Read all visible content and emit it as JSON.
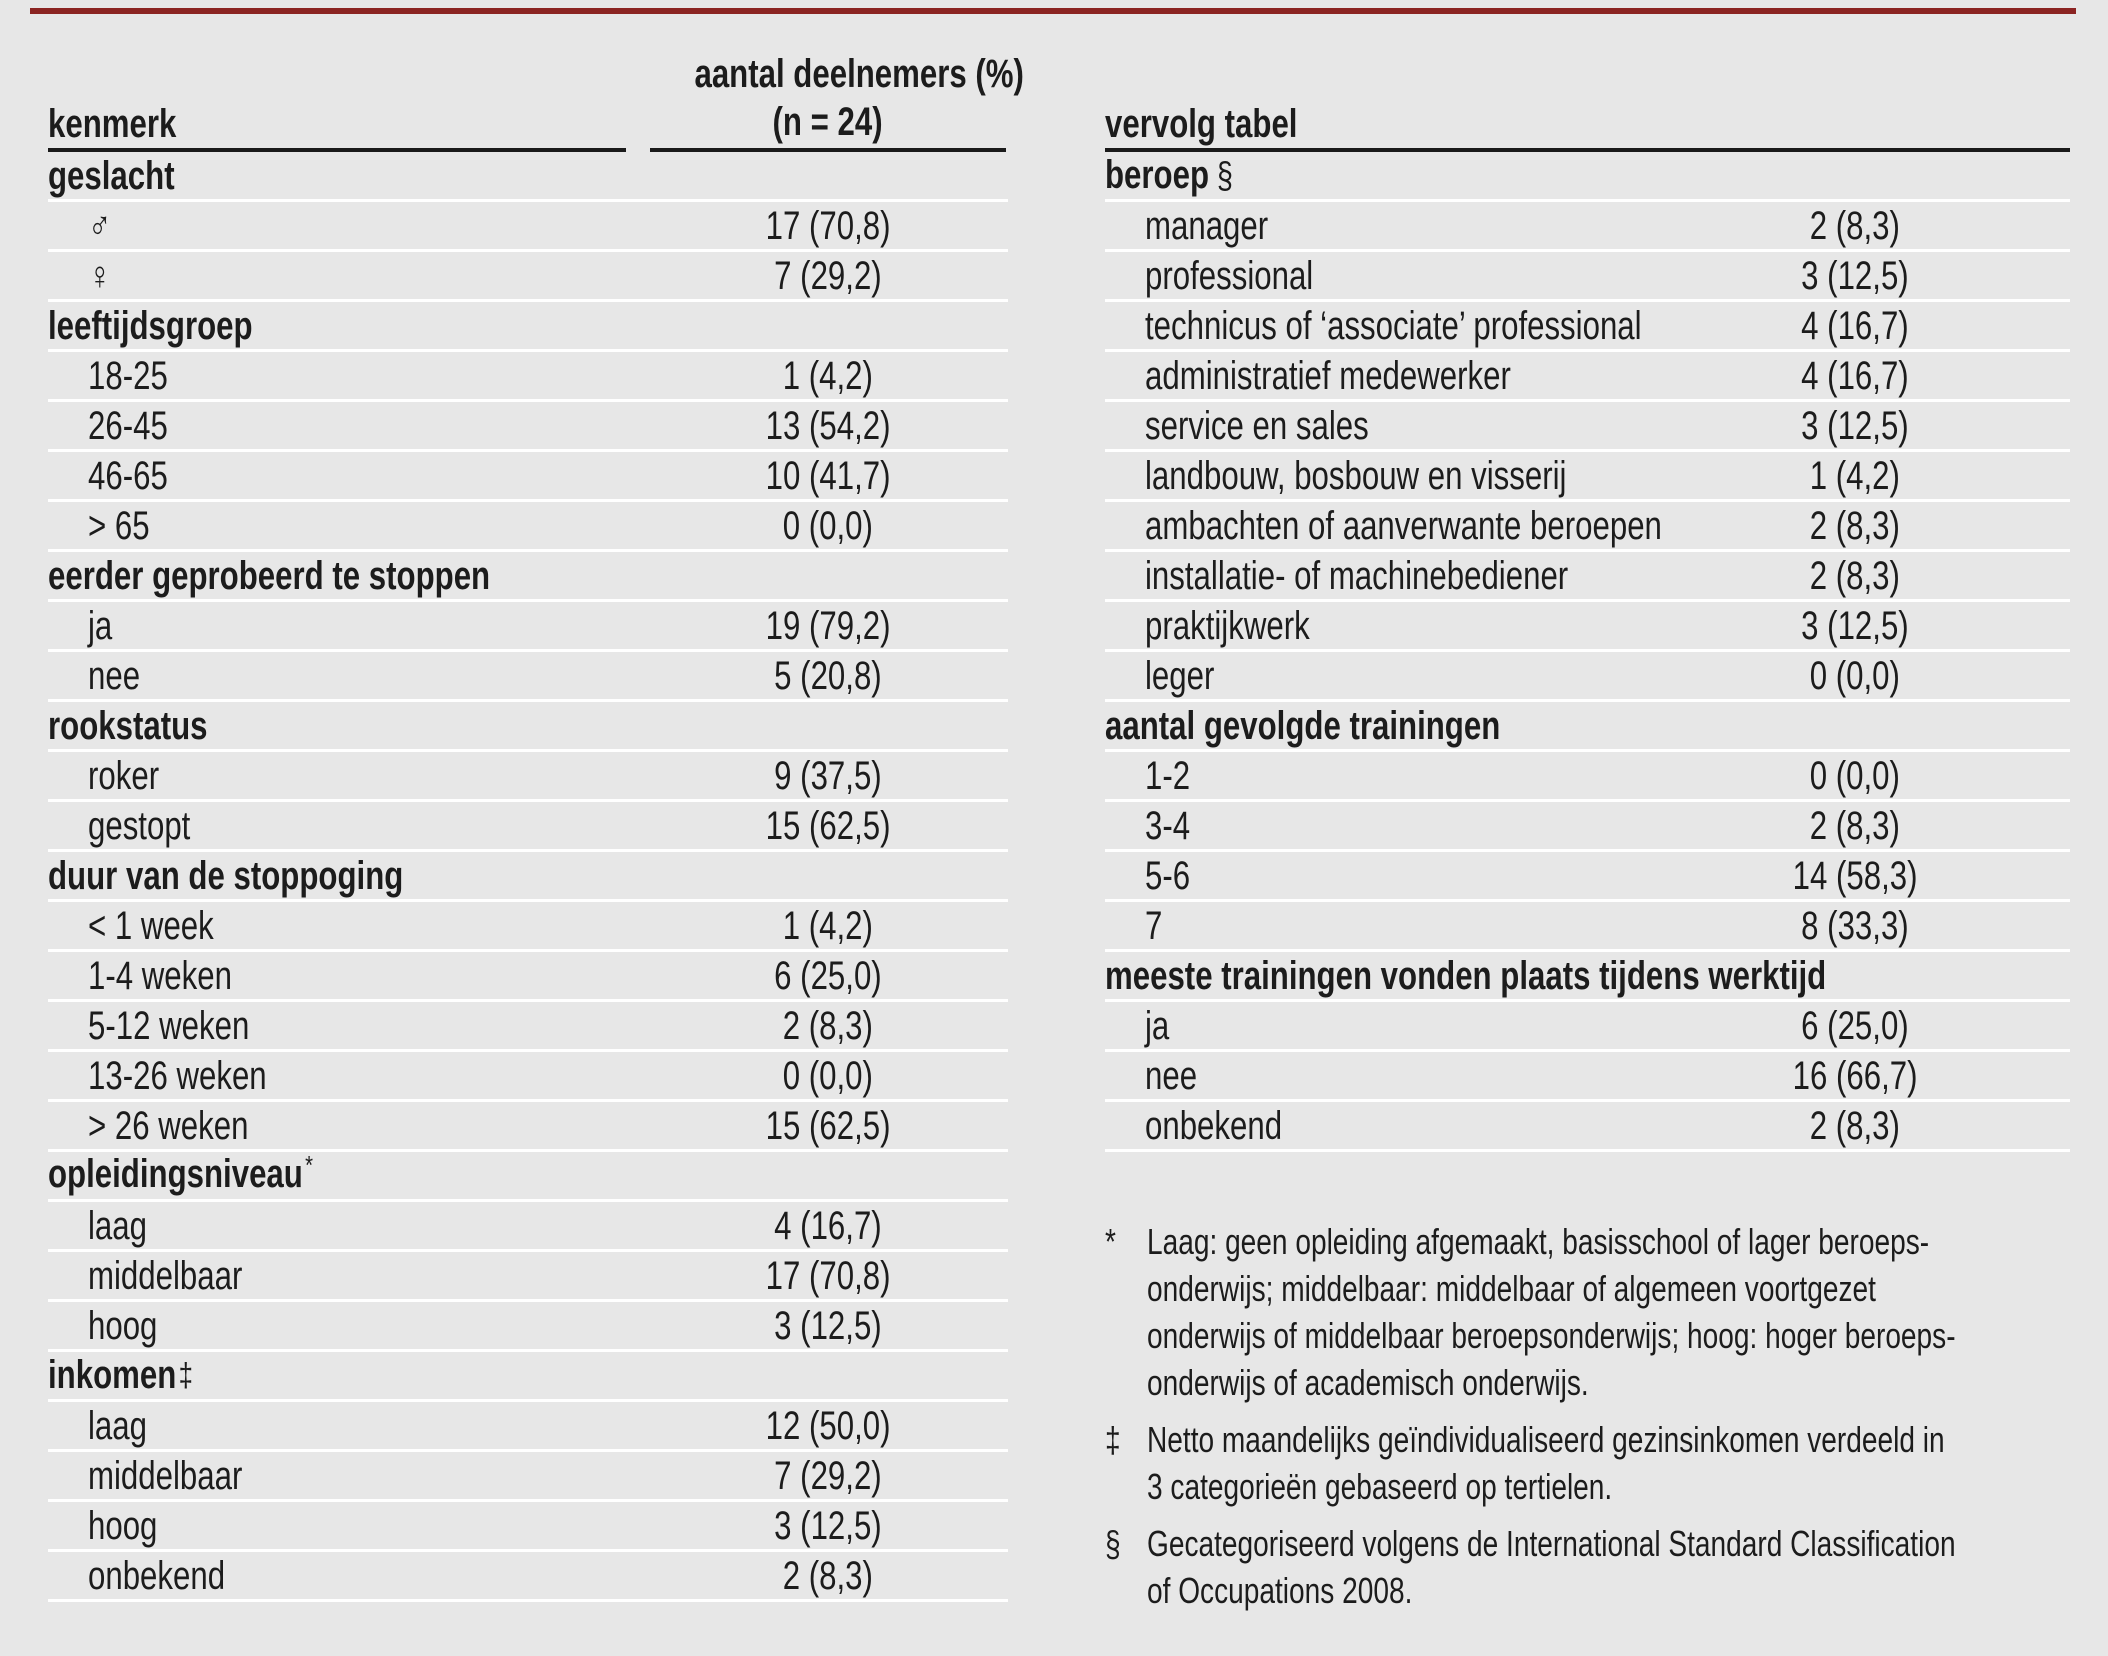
{
  "colors": {
    "background": "#e7e7e7",
    "text": "#1c1c1c",
    "rule": "#1a1a1a",
    "separator": "#ffffff",
    "accent_bar": "#8b2422"
  },
  "table": {
    "left": {
      "header_label": "kenmerk",
      "header_value_line1": "aantal deelnemers (%)",
      "header_value_line2": "(n = 24)",
      "sections": [
        {
          "title": "geslacht",
          "marker": "",
          "rows": [
            {
              "label": "♂",
              "value": "17 (70,8)"
            },
            {
              "label": "♀",
              "value": "7 (29,2)"
            }
          ]
        },
        {
          "title": "leeftijdsgroep",
          "marker": "",
          "rows": [
            {
              "label": "18-25",
              "value": "1 (4,2)"
            },
            {
              "label": "26-45",
              "value": "13 (54,2)"
            },
            {
              "label": "46-65",
              "value": "10 (41,7)"
            },
            {
              "label": "> 65",
              "value": "0 (0,0)"
            }
          ]
        },
        {
          "title": "eerder geprobeerd te stoppen",
          "marker": "",
          "rows": [
            {
              "label": "ja",
              "value": "19 (79,2)"
            },
            {
              "label": "nee",
              "value": "5 (20,8)"
            }
          ]
        },
        {
          "title": "rookstatus",
          "marker": "",
          "rows": [
            {
              "label": "roker",
              "value": "9 (37,5)"
            },
            {
              "label": "gestopt",
              "value": "15 (62,5)"
            }
          ]
        },
        {
          "title": "duur van de stoppoging",
          "marker": "",
          "rows": [
            {
              "label": "< 1 week",
              "value": "1 (4,2)"
            },
            {
              "label": "1-4 weken",
              "value": "6 (25,0)"
            },
            {
              "label": "5-12 weken",
              "value": "2 (8,3)"
            },
            {
              "label": "13-26 weken",
              "value": "0 (0,0)"
            },
            {
              "label": "> 26 weken",
              "value": "15 (62,5)"
            }
          ]
        },
        {
          "title": "opleidingsniveau",
          "marker": "*",
          "rows": [
            {
              "label": "laag",
              "value": "4 (16,7)"
            },
            {
              "label": "middelbaar",
              "value": "17 (70,8)"
            },
            {
              "label": "hoog",
              "value": "3 (12,5)"
            }
          ]
        },
        {
          "title": "inkomen",
          "marker": "‡",
          "rows": [
            {
              "label": "laag",
              "value": "12 (50,0)"
            },
            {
              "label": "middelbaar",
              "value": "7 (29,2)"
            },
            {
              "label": "hoog",
              "value": "3 (12,5)"
            },
            {
              "label": "onbekend",
              "value": "2 (8,3)"
            }
          ]
        }
      ]
    },
    "right": {
      "header_label": "vervolg tabel",
      "sections": [
        {
          "title": "beroep",
          "marker": "§",
          "rows": [
            {
              "label": "manager",
              "value": "2 (8,3)"
            },
            {
              "label": "professional",
              "value": "3 (12,5)"
            },
            {
              "label": "technicus of ‘associate’ professional",
              "value": "4 (16,7)"
            },
            {
              "label": "administratief medewerker",
              "value": "4 (16,7)"
            },
            {
              "label": "service en sales",
              "value": "3 (12,5)"
            },
            {
              "label": "landbouw, bosbouw en visserij",
              "value": "1 (4,2)"
            },
            {
              "label": "ambachten of aanverwante beroepen",
              "value": "2 (8,3)"
            },
            {
              "label": "installatie- of machinebediener",
              "value": "2 (8,3)"
            },
            {
              "label": "praktijkwerk",
              "value": "3 (12,5)"
            },
            {
              "label": "leger",
              "value": "0 (0,0)"
            }
          ]
        },
        {
          "title": "aantal gevolgde trainingen",
          "marker": "",
          "rows": [
            {
              "label": "1-2",
              "value": "0 (0,0)"
            },
            {
              "label": "3-4",
              "value": "2 (8,3)"
            },
            {
              "label": "5-6",
              "value": "14 (58,3)"
            },
            {
              "label": "7",
              "value": "8 (33,3)"
            }
          ]
        },
        {
          "title": "meeste trainingen vonden plaats tijdens werktijd",
          "marker": "",
          "rows": [
            {
              "label": "ja",
              "value": "6 (25,0)"
            },
            {
              "label": "nee",
              "value": "16 (66,7)"
            },
            {
              "label": "onbekend",
              "value": "2 (8,3)"
            }
          ]
        }
      ]
    }
  },
  "footnotes": [
    {
      "symbol": "*",
      "lines": [
        "Laag: geen opleiding afgemaakt, basisschool of lager beroeps-",
        "onderwijs; middelbaar: middelbaar of algemeen voortgezet",
        "onderwijs of middelbaar beroepsonderwijs; hoog: hoger beroeps-",
        "onderwijs of academisch onderwijs."
      ]
    },
    {
      "symbol": "‡",
      "lines": [
        "Netto maandelijks geïndividualiseerd gezinsinkomen verdeeld in",
        "3 categorieën gebaseerd op tertielen."
      ]
    },
    {
      "symbol": "§",
      "lines": [
        "Gecategoriseerd volgens de International Standard Classification",
        "of Occupations 2008."
      ]
    }
  ]
}
